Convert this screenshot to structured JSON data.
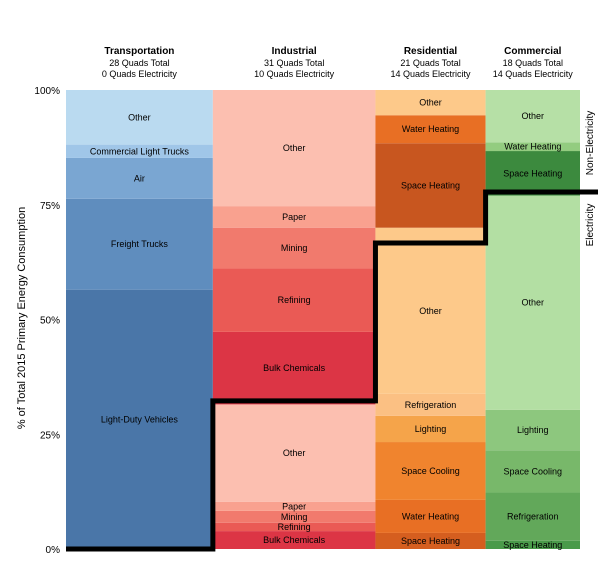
{
  "chart_data": {
    "type": "marimekko",
    "ylabel": "% of Total 2015 Primary Energy Consumption",
    "y_ticks": [
      "0%",
      "25%",
      "50%",
      "75%",
      "100%"
    ],
    "ylim": [
      0,
      100
    ],
    "side_labels": {
      "upper": "Non-Electricity",
      "lower": "Electricity"
    },
    "columns": [
      {
        "name": "Transportation",
        "total": "28 Quads Total",
        "electricity": "0 Quads Electricity",
        "total_quads": 28,
        "electricity_quads": 0,
        "segments": [
          {
            "label": "Light-Duty Vehicles",
            "value": 56.5,
            "color": "#4a76a8"
          },
          {
            "label": "Freight Trucks",
            "value": 19.8,
            "color": "#5f8dbe"
          },
          {
            "label": "Air",
            "value": 8.9,
            "color": "#7aa6d2"
          },
          {
            "label": "Commercial Light Trucks",
            "value": 2.9,
            "color": "#a0c6e8"
          },
          {
            "label": "Other",
            "value": 11.9,
            "color": "#badaf0"
          }
        ]
      },
      {
        "name": "Industrial",
        "total": "31 Quads Total",
        "electricity": "10 Quads Electricity",
        "total_quads": 31,
        "electricity_quads": 10,
        "segments": [
          {
            "label": "Bulk Chemicals",
            "value": 3.9,
            "color": "#dc3545"
          },
          {
            "label": "Refining",
            "value": 1.8,
            "color": "#ea5a55"
          },
          {
            "label": "Mining",
            "value": 2.6,
            "color": "#f17a6d"
          },
          {
            "label": "Paper",
            "value": 2.0,
            "color": "#f9a18f"
          },
          {
            "label": "Other",
            "value": 21.2,
            "color": "#fcbfb0"
          },
          {
            "label": "Bulk Chemicals",
            "value": 15.8,
            "color": "#dc3545"
          },
          {
            "label": "Refining",
            "value": 13.8,
            "color": "#ea5a55"
          },
          {
            "label": "Mining",
            "value": 8.9,
            "color": "#f17a6d"
          },
          {
            "label": "Paper",
            "value": 4.7,
            "color": "#f9a18f"
          },
          {
            "label": "Other",
            "value": 25.3,
            "color": "#fcbfb0"
          }
        ]
      },
      {
        "name": "Residential",
        "total": "21 Quads Total",
        "electricity": "14 Quads Electricity",
        "total_quads": 21,
        "electricity_quads": 14,
        "segments": [
          {
            "label": "Space Heating",
            "value": 3.5,
            "color": "#d55e1f"
          },
          {
            "label": "Water Heating",
            "value": 7.2,
            "color": "#e86f24"
          },
          {
            "label": "Space Cooling",
            "value": 12.6,
            "color": "#f0842e"
          },
          {
            "label": "Lighting",
            "value": 5.7,
            "color": "#f5a44a"
          },
          {
            "label": "Refrigeration",
            "value": 4.8,
            "color": "#fbc083"
          },
          {
            "label": "Other",
            "value": 36.2,
            "color": "#fdc98a"
          },
          {
            "label": "Space Heating",
            "value": 18.4,
            "color": "#c8561f"
          },
          {
            "label": "Water Heating",
            "value": 6.1,
            "color": "#e86f24"
          },
          {
            "label": "Other",
            "value": 5.5,
            "color": "#fdc98a"
          }
        ]
      },
      {
        "name": "Commercial",
        "total": "18 Quads Total",
        "electricity": "14 Quads Electricity",
        "total_quads": 18,
        "electricity_quads": 14,
        "segments": [
          {
            "label": "Space Heating",
            "value": 1.8,
            "color": "#4a9a4a"
          },
          {
            "label": "Refrigeration",
            "value": 10.5,
            "color": "#62a85a"
          },
          {
            "label": "Space Cooling",
            "value": 9.2,
            "color": "#78b86a"
          },
          {
            "label": "Lighting",
            "value": 8.8,
            "color": "#8dc77e"
          },
          {
            "label": "Other",
            "value": 46.7,
            "color": "#b3dfa3"
          },
          {
            "label": "Space Heating",
            "value": 9.7,
            "color": "#3c8a3e"
          },
          {
            "label": "Water Heating",
            "value": 1.9,
            "color": "#93cc80"
          },
          {
            "label": "Other",
            "value": 11.4,
            "color": "#b6e0a6"
          }
        ]
      }
    ]
  }
}
